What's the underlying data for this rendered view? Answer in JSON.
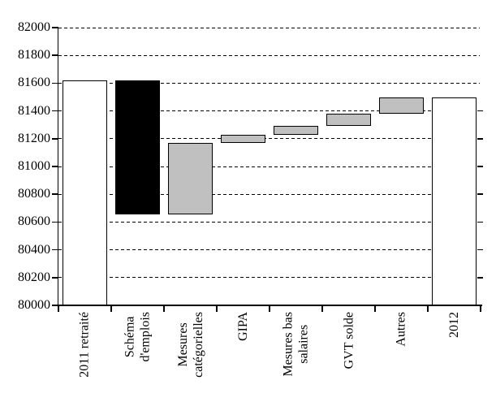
{
  "chart_data": {
    "type": "bar",
    "subtype": "waterfall",
    "y_axis": {
      "min": 80000,
      "max": 82000,
      "step": 200,
      "tick_labels": [
        "80000",
        "80200",
        "80400",
        "80600",
        "80800",
        "81000",
        "81200",
        "81400",
        "81600",
        "81800",
        "82000"
      ]
    },
    "grid": {
      "orientation": "horizontal",
      "style": "dashed"
    },
    "legend": "none",
    "colors": {
      "total": "#ffffff",
      "negative": "#000000",
      "positive": "#c0c0c0",
      "axis": "#000000",
      "background": "#ffffff"
    },
    "categories": [
      {
        "id": "2011-retraite",
        "label": "2011 retraité",
        "label_lines": [
          "2011 retraité"
        ],
        "from": 80000,
        "to": 81620,
        "delta": null,
        "role": "total"
      },
      {
        "id": "schema-emplois",
        "label": "Schéma d'emplois",
        "label_lines": [
          "Schéma",
          "d'emplois"
        ],
        "from": 80655,
        "to": 81620,
        "delta": -965,
        "role": "negative"
      },
      {
        "id": "mesures-categorielles",
        "label": "Mesures catégorielles",
        "label_lines": [
          "Mesures",
          "catégorielles"
        ],
        "from": 80655,
        "to": 81170,
        "delta": 515,
        "role": "positive"
      },
      {
        "id": "gipa",
        "label": "GIPA",
        "label_lines": [
          "GIPA"
        ],
        "from": 81170,
        "to": 81230,
        "delta": 60,
        "role": "positive"
      },
      {
        "id": "mesures-bas-salaires",
        "label": "Mesures bas salaires",
        "label_lines": [
          "Mesures bas",
          "salaires"
        ],
        "from": 81230,
        "to": 81290,
        "delta": 60,
        "role": "positive"
      },
      {
        "id": "gvt-solde",
        "label": "GVT solde",
        "label_lines": [
          "GVT solde"
        ],
        "from": 81290,
        "to": 81380,
        "delta": 90,
        "role": "positive"
      },
      {
        "id": "autres",
        "label": "Autres",
        "label_lines": [
          "Autres"
        ],
        "from": 81380,
        "to": 81500,
        "delta": 120,
        "role": "positive"
      },
      {
        "id": "2012",
        "label": "2012",
        "label_lines": [
          "2012"
        ],
        "from": 80000,
        "to": 81500,
        "delta": null,
        "role": "total"
      }
    ]
  }
}
